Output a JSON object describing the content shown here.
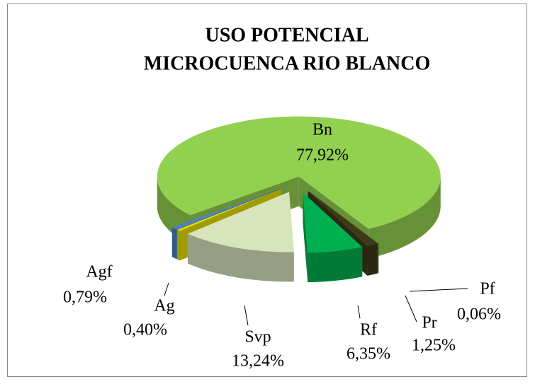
{
  "chart_data": {
    "type": "pie",
    "title": [
      "USO POTENCIAL",
      "MICROCUENCA RIO BLANCO"
    ],
    "categories": [
      "Bn",
      "Pf",
      "Pr",
      "Rf",
      "Svp",
      "Ag",
      "Agf"
    ],
    "values": [
      77.92,
      0.06,
      1.25,
      6.35,
      13.24,
      0.4,
      0.79
    ],
    "value_labels": [
      "77,92%",
      "0,06%",
      "1,25%",
      "6,35%",
      "13,24%",
      "0,40%",
      "0,79%"
    ],
    "colors": [
      "#92d050",
      "#4f6228",
      "#3d3a1a",
      "#00b050",
      "#d7e4bc",
      "#e6e000",
      "#4f81bd"
    ]
  }
}
